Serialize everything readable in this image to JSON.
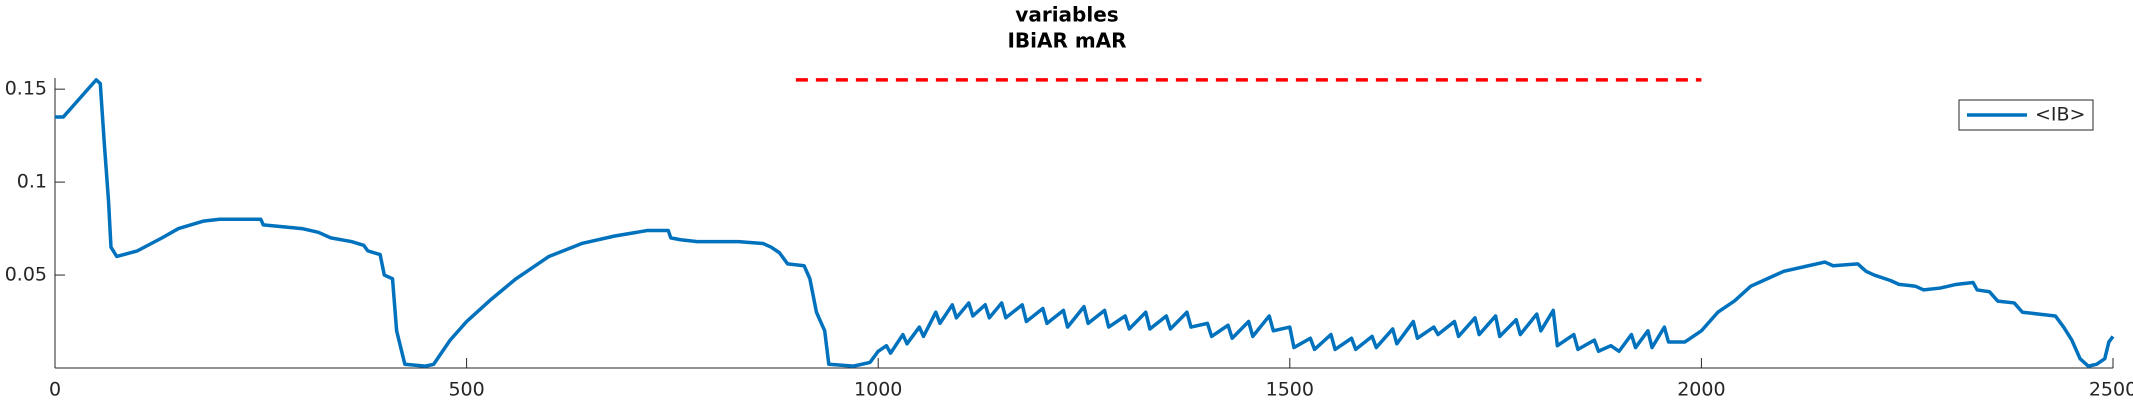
{
  "chart_data": {
    "type": "line",
    "title": [
      "variables",
      "IBiAR mAR"
    ],
    "x": [
      0,
      10,
      20,
      40,
      50,
      55,
      60,
      65,
      68,
      75,
      100,
      130,
      150,
      180,
      200,
      250,
      253,
      300,
      320,
      335,
      360,
      375,
      380,
      395,
      400,
      410,
      415,
      425,
      450,
      460,
      480,
      500,
      530,
      560,
      600,
      640,
      680,
      720,
      745,
      748,
      760,
      780,
      830,
      860,
      870,
      880,
      890,
      910,
      917,
      925,
      935,
      940,
      970,
      990,
      1000,
      1010,
      1015,
      1030,
      1035,
      1050,
      1055,
      1070,
      1075,
      1090,
      1095,
      1110,
      1115,
      1130,
      1135,
      1150,
      1155,
      1175,
      1180,
      1200,
      1205,
      1225,
      1230,
      1250,
      1255,
      1275,
      1280,
      1300,
      1305,
      1325,
      1330,
      1350,
      1355,
      1375,
      1380,
      1400,
      1405,
      1425,
      1430,
      1450,
      1455,
      1475,
      1480,
      1500,
      1505,
      1525,
      1530,
      1550,
      1555,
      1575,
      1580,
      1600,
      1605,
      1625,
      1630,
      1650,
      1655,
      1675,
      1680,
      1700,
      1705,
      1725,
      1730,
      1750,
      1755,
      1775,
      1780,
      1800,
      1805,
      1820,
      1825,
      1845,
      1850,
      1870,
      1875,
      1890,
      1900,
      1915,
      1920,
      1935,
      1940,
      1955,
      1960,
      1980,
      2000,
      2020,
      2040,
      2060,
      2080,
      2100,
      2130,
      2150,
      2160,
      2190,
      2200,
      2210,
      2230,
      2240,
      2260,
      2270,
      2290,
      2310,
      2330,
      2335,
      2350,
      2360,
      2380,
      2390,
      2410,
      2430,
      2440,
      2450,
      2460,
      2470,
      2480,
      2490,
      2495,
      2500
    ],
    "series": [
      {
        "name": "<IB>",
        "color": "#0072bd",
        "values": [
          0.135,
          0.135,
          0.14,
          0.15,
          0.155,
          0.153,
          0.12,
          0.09,
          0.065,
          0.06,
          0.063,
          0.07,
          0.075,
          0.079,
          0.08,
          0.08,
          0.077,
          0.075,
          0.073,
          0.07,
          0.068,
          0.066,
          0.063,
          0.061,
          0.05,
          0.048,
          0.02,
          0.002,
          0.001,
          0.002,
          0.015,
          0.025,
          0.037,
          0.048,
          0.06,
          0.067,
          0.071,
          0.074,
          0.074,
          0.07,
          0.069,
          0.068,
          0.068,
          0.067,
          0.065,
          0.062,
          0.056,
          0.055,
          0.048,
          0.03,
          0.02,
          0.002,
          0.001,
          0.003,
          0.009,
          0.012,
          0.008,
          0.018,
          0.013,
          0.022,
          0.017,
          0.03,
          0.024,
          0.034,
          0.027,
          0.035,
          0.028,
          0.034,
          0.027,
          0.035,
          0.027,
          0.034,
          0.025,
          0.032,
          0.024,
          0.031,
          0.022,
          0.033,
          0.024,
          0.031,
          0.022,
          0.028,
          0.021,
          0.03,
          0.021,
          0.028,
          0.021,
          0.03,
          0.022,
          0.024,
          0.017,
          0.023,
          0.016,
          0.025,
          0.017,
          0.028,
          0.02,
          0.022,
          0.011,
          0.016,
          0.01,
          0.018,
          0.01,
          0.016,
          0.01,
          0.017,
          0.011,
          0.021,
          0.013,
          0.025,
          0.016,
          0.022,
          0.018,
          0.025,
          0.017,
          0.027,
          0.018,
          0.028,
          0.017,
          0.026,
          0.018,
          0.029,
          0.02,
          0.031,
          0.012,
          0.018,
          0.01,
          0.015,
          0.009,
          0.012,
          0.009,
          0.018,
          0.011,
          0.02,
          0.011,
          0.022,
          0.014,
          0.014,
          0.02,
          0.03,
          0.036,
          0.044,
          0.048,
          0.052,
          0.055,
          0.057,
          0.055,
          0.056,
          0.052,
          0.05,
          0.047,
          0.045,
          0.044,
          0.042,
          0.043,
          0.045,
          0.046,
          0.042,
          0.041,
          0.036,
          0.035,
          0.03,
          0.029,
          0.028,
          0.022,
          0.015,
          0.005,
          0.001,
          0.002,
          0.005,
          0.014,
          0.017
        ]
      }
    ],
    "reference_line": {
      "xmin": 900,
      "xmax": 2000,
      "value": 0.155,
      "color": "#ff0000"
    },
    "xlim": [
      0,
      2500
    ],
    "xticks": [
      0,
      500,
      1000,
      1500,
      2000,
      2500
    ],
    "ylim": [
      0,
      0.156
    ],
    "yticks": [
      0.05,
      0.1,
      0.15
    ],
    "legend": "upper right"
  }
}
